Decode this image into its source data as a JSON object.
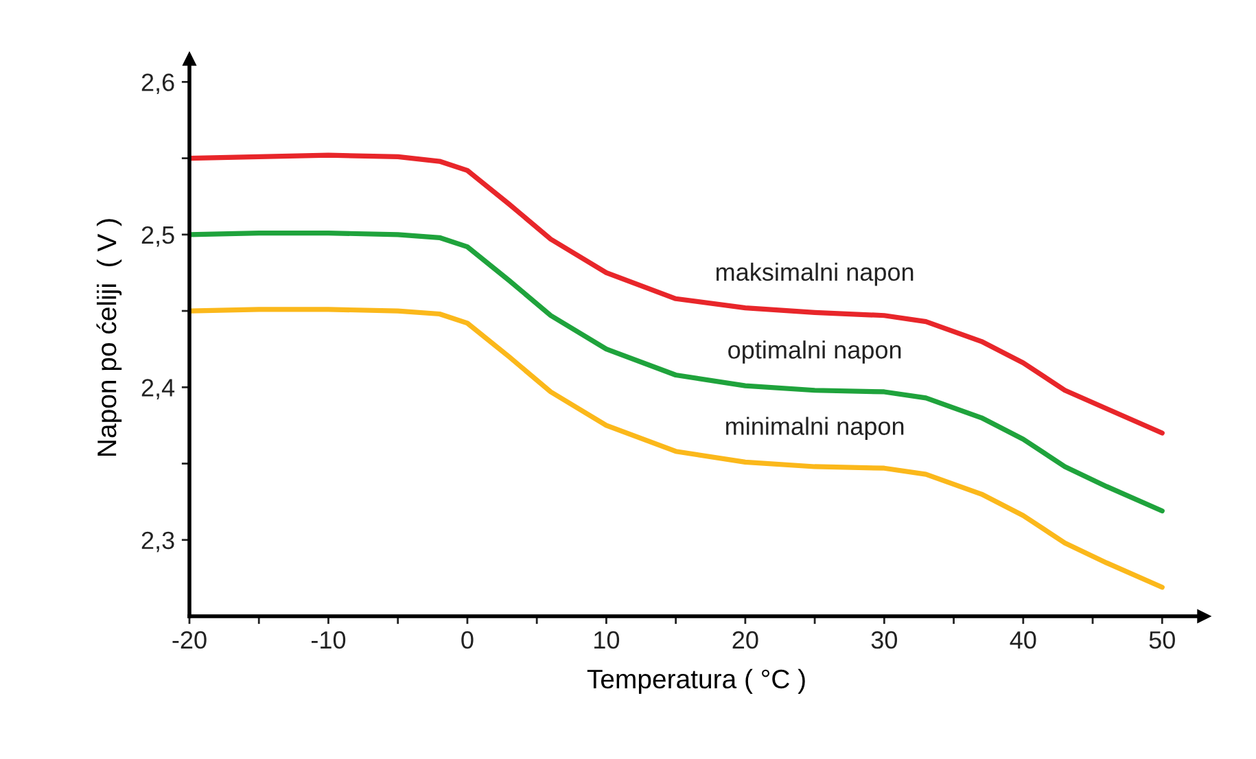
{
  "chart_data": {
    "type": "line",
    "xlabel": "Temperatura ( °C )",
    "ylabel": "Napon po ćeliji  ( V )",
    "x": [
      -20,
      -15,
      -10,
      -5,
      -2,
      0,
      3,
      6,
      10,
      15,
      20,
      25,
      30,
      33,
      37,
      40,
      43,
      46,
      50
    ],
    "series": [
      {
        "name": "maksimalni napon",
        "color": "#e8262a",
        "values": [
          2.55,
          2.551,
          2.552,
          2.551,
          2.548,
          2.542,
          2.52,
          2.497,
          2.475,
          2.458,
          2.452,
          2.449,
          2.447,
          2.443,
          2.43,
          2.416,
          2.398,
          2.386,
          2.37
        ]
      },
      {
        "name": "optimalni napon",
        "color": "#1fa33c",
        "values": [
          2.5,
          2.501,
          2.501,
          2.5,
          2.498,
          2.492,
          2.47,
          2.447,
          2.425,
          2.408,
          2.401,
          2.398,
          2.397,
          2.393,
          2.38,
          2.366,
          2.348,
          2.335,
          2.319
        ]
      },
      {
        "name": "minimalni napon",
        "color": "#fbb81b",
        "values": [
          2.45,
          2.451,
          2.451,
          2.45,
          2.448,
          2.442,
          2.42,
          2.397,
          2.375,
          2.358,
          2.351,
          2.348,
          2.347,
          2.343,
          2.33,
          2.316,
          2.298,
          2.285,
          2.269
        ]
      }
    ],
    "xlim": [
      -20,
      53
    ],
    "ylim": [
      2.25,
      2.615
    ],
    "xticks": [
      -20,
      {
        "value": -15,
        "label": null
      },
      -10,
      {
        "value": -5,
        "label": null
      },
      0,
      {
        "value": 5,
        "label": null
      },
      10,
      {
        "value": 15,
        "label": null
      },
      20,
      {
        "value": 25,
        "label": null
      },
      30,
      {
        "value": 35,
        "label": null
      },
      40,
      {
        "value": 45,
        "label": null
      },
      50
    ],
    "yticks": [
      {
        "value": 2.3,
        "label": "2,3"
      },
      {
        "value": 2.35,
        "label": null
      },
      {
        "value": 2.4,
        "label": "2,4"
      },
      {
        "value": 2.45,
        "label": null
      },
      {
        "value": 2.5,
        "label": "2,5"
      },
      {
        "value": 2.55,
        "label": null
      },
      {
        "value": 2.6,
        "label": "2,6"
      }
    ],
    "grid": false,
    "legend": false,
    "marker": "none",
    "line_style": "solid"
  }
}
